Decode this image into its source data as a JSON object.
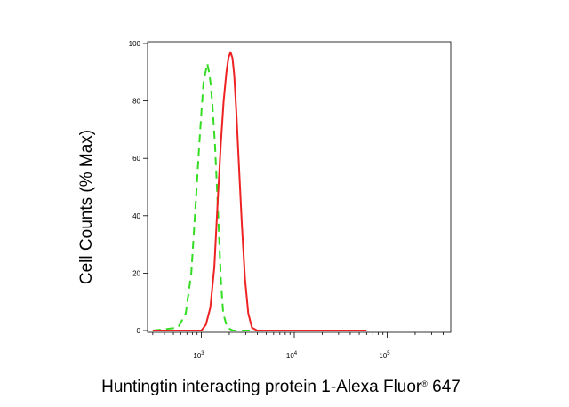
{
  "chart_data": {
    "type": "line",
    "title": "",
    "xlabel": "Huntingtin interacting protein 1-Alexa Fluor",
    "xlabel_mark": "®",
    "xlabel_suffix": " 647",
    "ylabel": "Cell Counts (% Max)",
    "x_scale": "log",
    "ylim": [
      0,
      100
    ],
    "y_ticks": [
      "0",
      "20",
      "40",
      "60",
      "80",
      "100"
    ],
    "x_ticks": [
      {
        "base": "10",
        "exp": "3",
        "value": 1000
      },
      {
        "base": "10",
        "exp": "4",
        "value": 10000
      },
      {
        "base": "10",
        "exp": "5",
        "value": 100000
      }
    ],
    "legend": "none",
    "grid": false,
    "series": [
      {
        "color": "#33dd22",
        "style": "dashed",
        "points": [
          [
            300,
            0
          ],
          [
            560,
            1
          ],
          [
            680,
            6
          ],
          [
            780,
            20
          ],
          [
            860,
            42
          ],
          [
            950,
            65
          ],
          [
            1010,
            78
          ],
          [
            1060,
            87
          ],
          [
            1110,
            90
          ],
          [
            1160,
            93
          ],
          [
            1210,
            90
          ],
          [
            1260,
            86
          ],
          [
            1320,
            78
          ],
          [
            1400,
            65
          ],
          [
            1520,
            40
          ],
          [
            1620,
            18
          ],
          [
            1720,
            6
          ],
          [
            1900,
            1
          ],
          [
            2200,
            0
          ],
          [
            5000,
            0
          ]
        ]
      },
      {
        "color": "#ee2222",
        "style": "solid",
        "points": [
          [
            300,
            0
          ],
          [
            1000,
            0
          ],
          [
            1120,
            2
          ],
          [
            1250,
            8
          ],
          [
            1380,
            22
          ],
          [
            1500,
            45
          ],
          [
            1620,
            65
          ],
          [
            1740,
            80
          ],
          [
            1860,
            90
          ],
          [
            1960,
            95
          ],
          [
            2060,
            97
          ],
          [
            2160,
            95
          ],
          [
            2260,
            89
          ],
          [
            2380,
            76
          ],
          [
            2520,
            60
          ],
          [
            2720,
            38
          ],
          [
            2950,
            18
          ],
          [
            3200,
            6
          ],
          [
            3500,
            1
          ],
          [
            4000,
            0
          ],
          [
            60000,
            0
          ]
        ]
      }
    ]
  }
}
